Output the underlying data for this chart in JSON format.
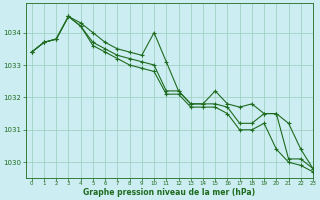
{
  "xlabel": "Graphe pression niveau de la mer (hPa)",
  "bg_color": "#cceef2",
  "line_color": "#1f6b1f",
  "grid_color": "#99ccbb",
  "ylim": [
    1029.5,
    1034.9
  ],
  "xlim": [
    -0.5,
    23
  ],
  "yticks": [
    1030,
    1031,
    1032,
    1033,
    1034
  ],
  "xticks": [
    0,
    1,
    2,
    3,
    4,
    5,
    6,
    7,
    8,
    9,
    10,
    11,
    12,
    13,
    14,
    15,
    16,
    17,
    18,
    19,
    20,
    21,
    22,
    23
  ],
  "series": [
    [
      1033.4,
      1033.7,
      1033.8,
      1034.5,
      1034.3,
      1034.0,
      1033.7,
      1033.5,
      1033.4,
      1033.3,
      1034.0,
      1033.1,
      1032.2,
      1031.8,
      1031.8,
      1032.2,
      1031.8,
      1031.7,
      1031.8,
      1031.5,
      1031.5,
      1030.1,
      1030.1,
      1029.8
    ],
    [
      1033.4,
      1033.7,
      1033.8,
      1034.5,
      1034.2,
      1033.7,
      1033.5,
      1033.3,
      1033.2,
      1033.1,
      1033.0,
      1032.2,
      1032.2,
      1031.8,
      1031.8,
      1031.8,
      1031.7,
      1031.2,
      1031.2,
      1031.5,
      1031.5,
      1031.2,
      1030.4,
      1029.8
    ],
    [
      1033.4,
      1033.7,
      1033.8,
      1034.5,
      1034.2,
      1033.6,
      1033.4,
      1033.2,
      1033.0,
      1032.9,
      1032.8,
      1032.1,
      1032.1,
      1031.7,
      1031.7,
      1031.7,
      1031.5,
      1031.0,
      1031.0,
      1031.2,
      1030.4,
      1030.0,
      1029.9,
      1029.7
    ]
  ],
  "marker": "+"
}
